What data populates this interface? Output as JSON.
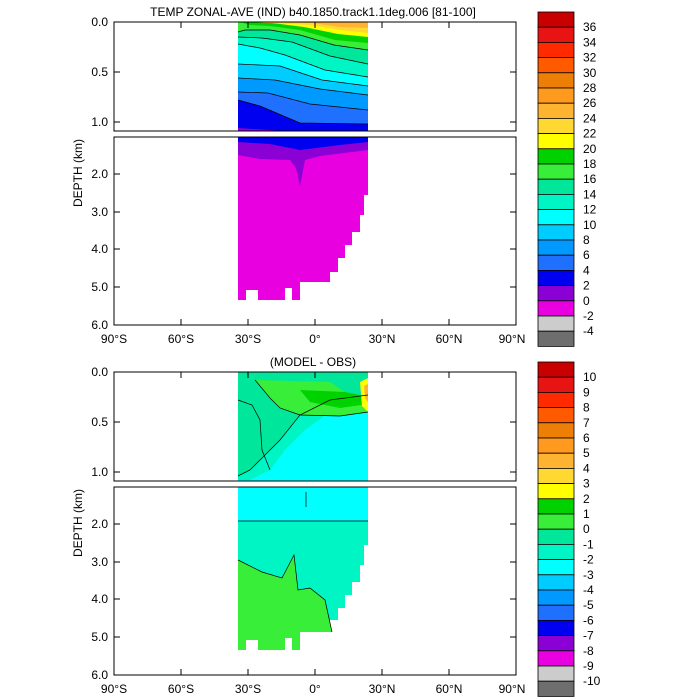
{
  "chart_data": [
    {
      "type": "contour",
      "title": "TEMP ZONAL-AVE (IND) b40.1850.track1.1deg.006 [81-100]",
      "ylabel": "DEPTH (km)",
      "xlabel": "",
      "xlim": [
        -90,
        90
      ],
      "x_ticks": [
        "90°S",
        "60°S",
        "30°S",
        "0°",
        "30°N",
        "60°N",
        "90°N"
      ],
      "upper_panel": {
        "ylim": [
          0.0,
          1.1
        ],
        "y_ticks": [
          "0.0",
          "0.5",
          "1.0"
        ]
      },
      "lower_panel": {
        "ylim": [
          1.1,
          6.0
        ],
        "y_ticks": [
          "2.0",
          "3.0",
          "4.0",
          "5.0",
          "6.0"
        ]
      },
      "data_extent": {
        "lat_min": -35,
        "lat_max": 25
      },
      "colorbar": {
        "labels": [
          "36",
          "34",
          "32",
          "30",
          "28",
          "26",
          "24",
          "22",
          "20",
          "18",
          "16",
          "14",
          "12",
          "10",
          "8",
          "6",
          "4",
          "2",
          "0",
          "-2",
          "-4"
        ],
        "colors": [
          "#c80000",
          "#e81414",
          "#ff2a00",
          "#ff5a00",
          "#ee7f06",
          "#ff9a1e",
          "#ffb431",
          "#ffd832",
          "#ffff00",
          "#00d200",
          "#38ee38",
          "#00e69a",
          "#00f5c5",
          "#00ffff",
          "#00ccff",
          "#0099ff",
          "#1f70ff",
          "#0000f0",
          "#8b00d4",
          "#e800e0",
          "#cccccc",
          "#6e6e6e"
        ]
      }
    },
    {
      "type": "contour",
      "title": "(MODEL - OBS)",
      "ylabel": "DEPTH (km)",
      "xlabel": "",
      "xlim": [
        -90,
        90
      ],
      "x_ticks": [
        "90°S",
        "60°S",
        "30°S",
        "0°",
        "30°N",
        "60°N",
        "90°N"
      ],
      "upper_panel": {
        "ylim": [
          0.0,
          1.1
        ],
        "y_ticks": [
          "0.0",
          "0.5",
          "1.0"
        ]
      },
      "lower_panel": {
        "ylim": [
          1.1,
          6.0
        ],
        "y_ticks": [
          "2.0",
          "3.0",
          "4.0",
          "5.0",
          "6.0"
        ]
      },
      "data_extent": {
        "lat_min": -35,
        "lat_max": 25
      },
      "colorbar": {
        "labels": [
          "10",
          "9",
          "8",
          "7",
          "6",
          "5",
          "4",
          "3",
          "2",
          "1",
          "0",
          "-1",
          "-2",
          "-3",
          "-4",
          "-5",
          "-6",
          "-7",
          "-8",
          "-9",
          "-10"
        ],
        "colors": [
          "#c80000",
          "#e81414",
          "#ff2a00",
          "#ff5a00",
          "#ee7f06",
          "#ff9a1e",
          "#ffb431",
          "#ffd832",
          "#ffff00",
          "#00d200",
          "#38ee38",
          "#00e69a",
          "#00f5c5",
          "#00ffff",
          "#00ccff",
          "#0099ff",
          "#1f70ff",
          "#0000f0",
          "#8b00d4",
          "#e800e0",
          "#cccccc",
          "#6e6e6e"
        ]
      }
    }
  ]
}
